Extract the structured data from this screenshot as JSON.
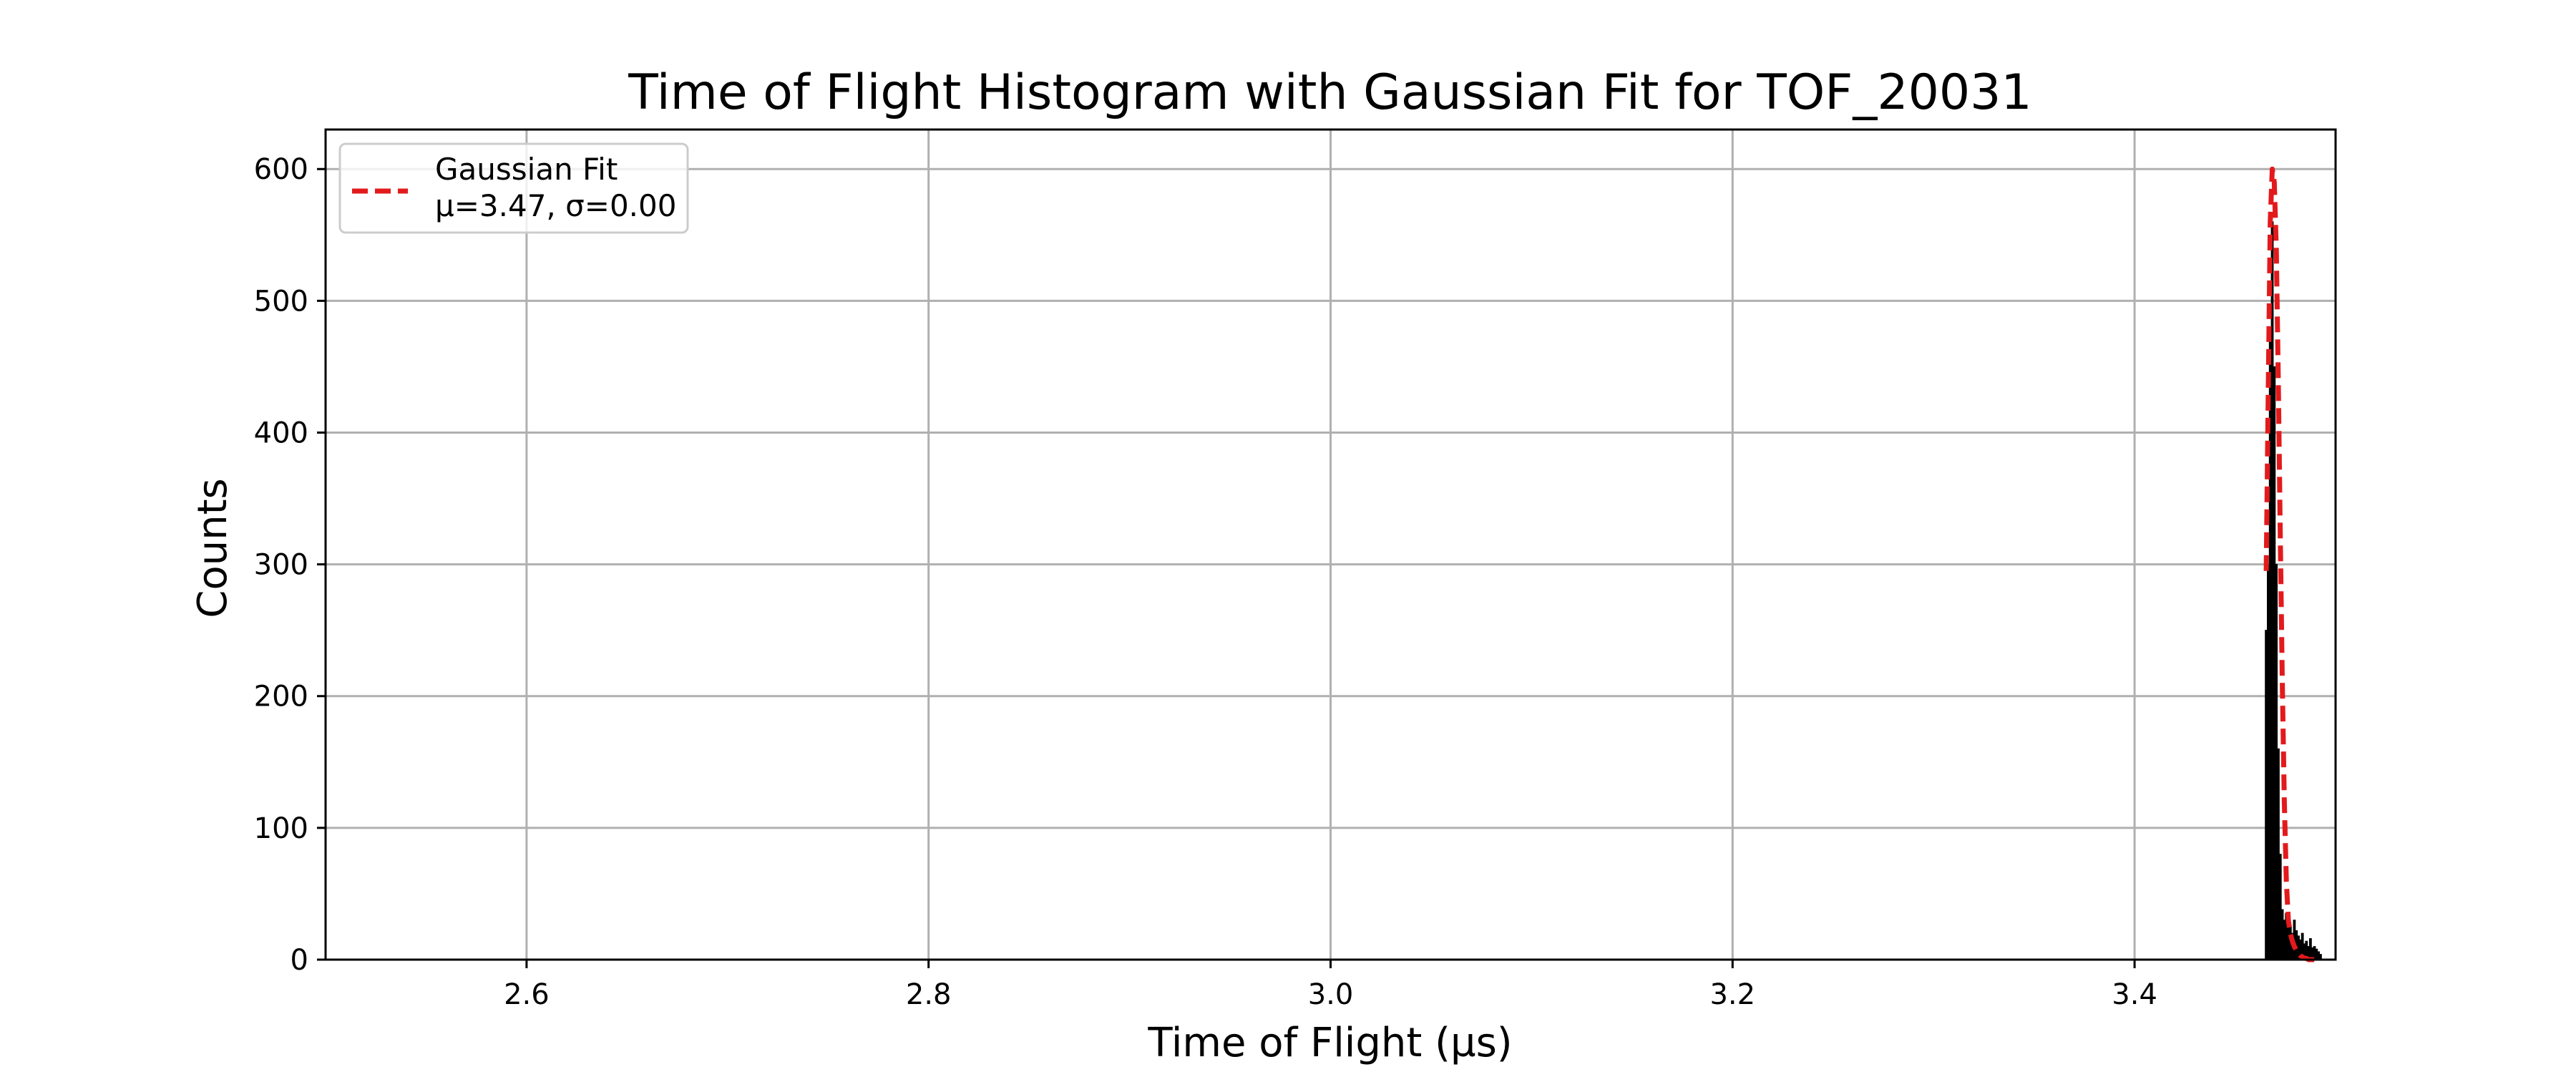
{
  "chart_data": {
    "type": "bar",
    "title": "Time of Flight Histogram with Gaussian Fit for TOF_20031",
    "xlabel": "Time of Flight (µs)",
    "ylabel": "Counts",
    "xlim": [
      2.5,
      3.5
    ],
    "ylim": [
      0,
      630
    ],
    "xticks": [
      2.6,
      2.8,
      3.0,
      3.2,
      3.4
    ],
    "xtick_labels": [
      "2.6",
      "2.8",
      "3.0",
      "3.2",
      "3.4"
    ],
    "yticks": [
      0,
      100,
      200,
      300,
      400,
      500,
      600
    ],
    "ytick_labels": [
      "0",
      "100",
      "200",
      "300",
      "400",
      "500",
      "600"
    ],
    "grid": true,
    "legend_position": "top-left",
    "legend_lines": [
      "Gaussian Fit",
      "μ=3.47, σ=0.00"
    ],
    "series": [
      {
        "kind": "histogram",
        "color": "#000000",
        "x": [
          3.4655,
          3.4665,
          3.4675,
          3.4685,
          3.4695,
          3.4705,
          3.4715,
          3.4725,
          3.4735,
          3.4745,
          3.4755,
          3.4765,
          3.4775,
          3.4785,
          3.4795,
          3.4805,
          3.4815,
          3.4825,
          3.4835,
          3.4845,
          3.4855,
          3.4865,
          3.4875,
          3.4885,
          3.4895,
          3.4905,
          3.4915,
          3.4925
        ],
        "values": [
          250,
          300,
          480,
          560,
          450,
          300,
          160,
          80,
          38,
          30,
          35,
          28,
          25,
          20,
          30,
          22,
          18,
          15,
          20,
          12,
          14,
          10,
          16,
          9,
          10,
          8,
          6,
          4
        ]
      },
      {
        "name": "Gaussian Fit",
        "kind": "line",
        "style": "dashed",
        "color": "#e31a1c",
        "x": [
          3.4655,
          3.4665,
          3.4675,
          3.4685,
          3.4695,
          3.4705,
          3.4715,
          3.4725,
          3.4735,
          3.4745,
          3.4755,
          3.4765,
          3.4775,
          3.4785,
          3.4795,
          3.4805,
          3.4815,
          3.4825,
          3.4835,
          3.4845,
          3.4855,
          3.4865,
          3.4875,
          3.4885,
          3.4895,
          3.4905,
          3.4915,
          3.4925
        ],
        "values": [
          295,
          430,
          560,
          600,
          590,
          540,
          440,
          320,
          210,
          120,
          60,
          30,
          20,
          14,
          10,
          7,
          5,
          3,
          2,
          1,
          1,
          0,
          0,
          0,
          0,
          0,
          0,
          0
        ]
      }
    ]
  }
}
